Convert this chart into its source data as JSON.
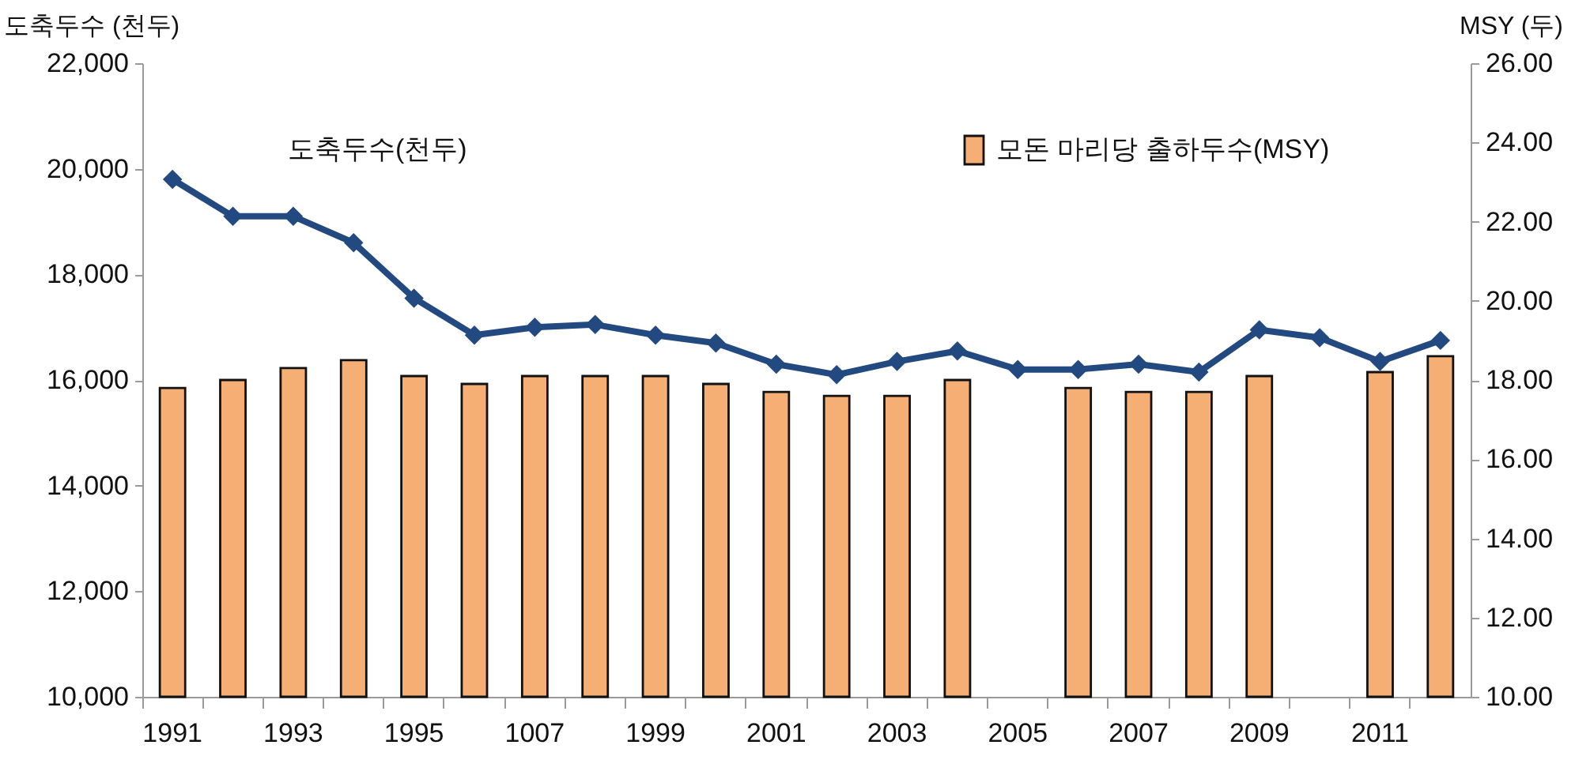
{
  "chart_data": {
    "type": "bar",
    "categories": [
      "1991",
      null,
      "1993",
      null,
      "1995",
      null,
      "1007",
      null,
      "1999",
      null,
      "2001",
      null,
      "2003",
      null,
      "2005",
      null,
      "2007",
      null,
      "2009",
      null,
      "2011",
      null
    ],
    "ylabel": "도축두수 (천두)",
    "y2label": "MSY (두)",
    "ylim": [
      10000,
      22000
    ],
    "yticks": [
      {
        "value": 10000,
        "label": "10,000"
      },
      {
        "value": 12000,
        "label": "12,000"
      },
      {
        "value": 14000,
        "label": "14,000"
      },
      {
        "value": 16000,
        "label": "16,000"
      },
      {
        "value": 18000,
        "label": "18,000"
      },
      {
        "value": 20000,
        "label": "20,000"
      },
      {
        "value": 22000,
        "label": "22,000"
      }
    ],
    "y2lim": [
      10,
      26
    ],
    "y2ticks": [
      {
        "value": 10,
        "label": "10.00"
      },
      {
        "value": 12,
        "label": "12.00"
      },
      {
        "value": 14,
        "label": "14.00"
      },
      {
        "value": 16,
        "label": "16.00"
      },
      {
        "value": 18,
        "label": "18.00"
      },
      {
        "value": 20,
        "label": "20.00"
      },
      {
        "value": 22,
        "label": "22.00"
      },
      {
        "value": 24,
        "label": "24.00"
      },
      {
        "value": 26,
        "label": "26.00"
      }
    ],
    "marker": "diamond",
    "line_style": "solid",
    "series": [
      {
        "name": "모돈 마리당 출하두수(MSY)",
        "axis": "y2",
        "color": "#f5ae74",
        "values": [
          17.8,
          18.0,
          18.3,
          18.5,
          18.1,
          17.9,
          18.1,
          18.1,
          18.1,
          17.9,
          17.7,
          17.6,
          17.6,
          18.0,
          null,
          17.8,
          17.7,
          17.7,
          18.1,
          null,
          18.2,
          18.6
        ]
      },
      {
        "name": "도축두수(천두)",
        "type": "line",
        "color": "#234a80",
        "values": [
          19800,
          19100,
          19100,
          18600,
          17550,
          16850,
          17000,
          17050,
          16850,
          16700,
          16300,
          16100,
          16350,
          16550,
          16200,
          16200,
          16300,
          16150,
          16950,
          16800,
          16350,
          16750
        ]
      }
    ]
  }
}
